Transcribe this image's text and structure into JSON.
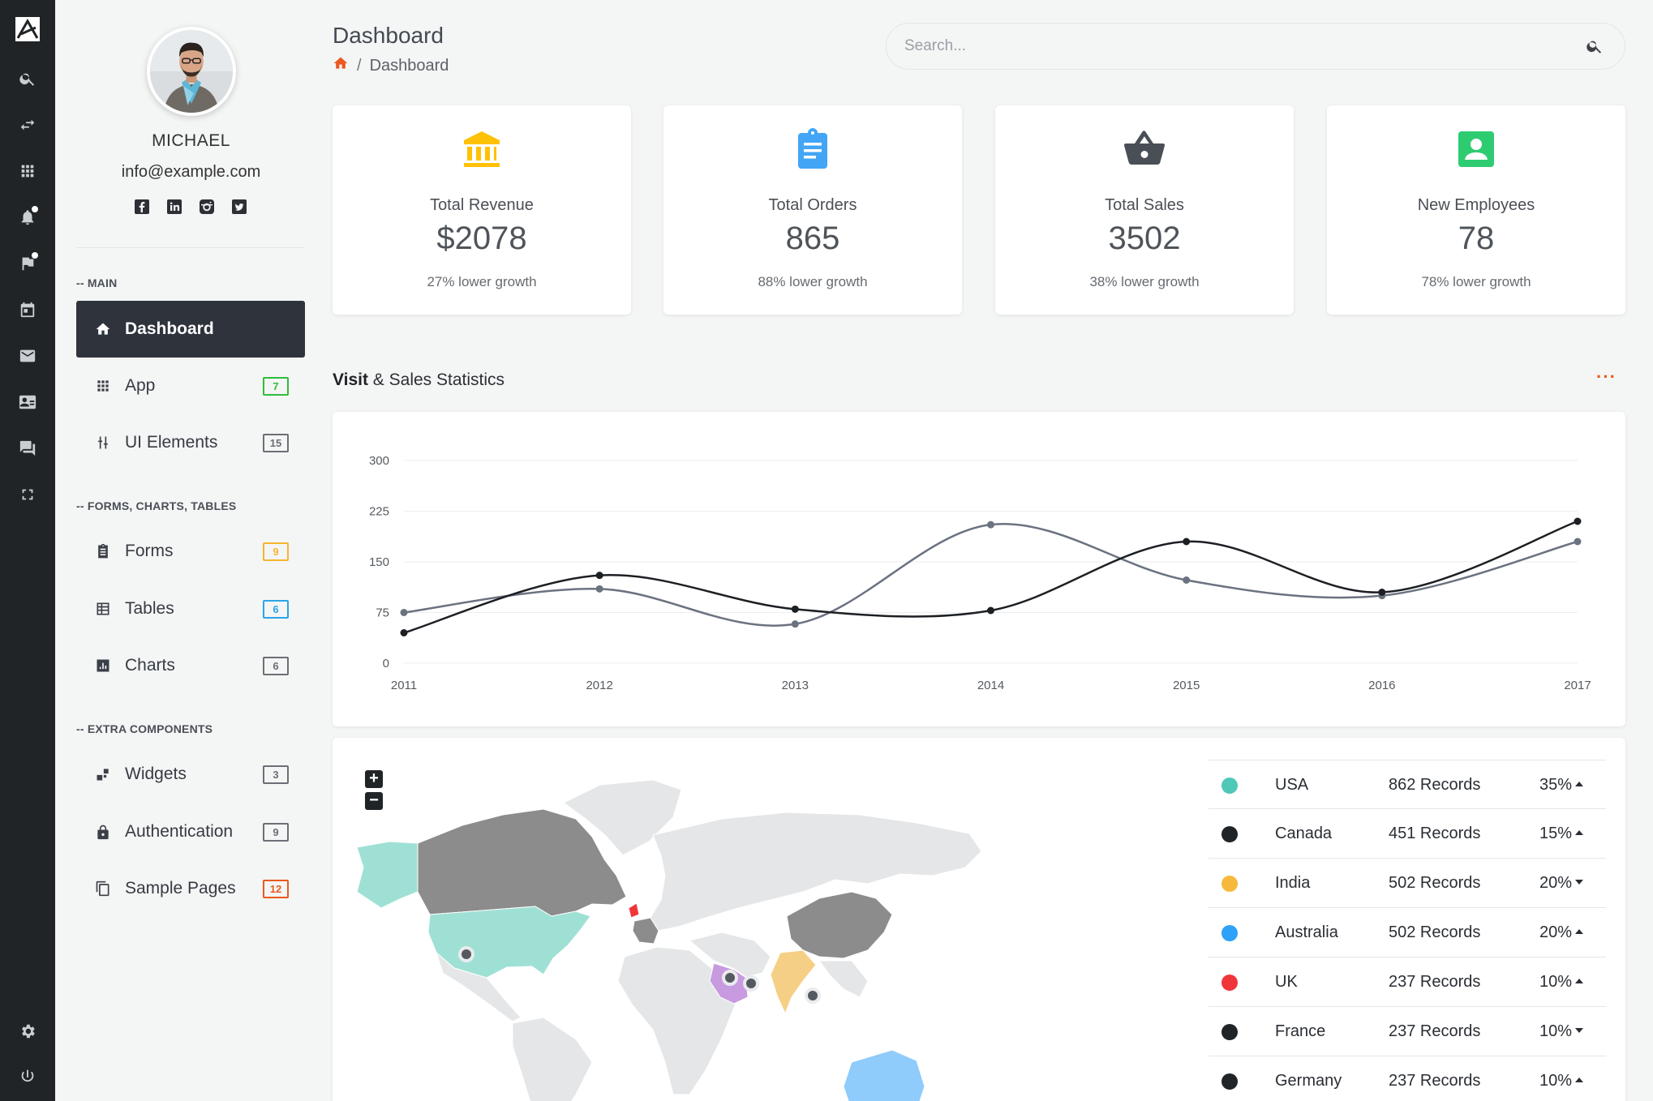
{
  "user": {
    "name": "MICHAEL",
    "email": "info@example.com",
    "socials": [
      "facebook-icon",
      "linkedin-icon",
      "instagram-icon",
      "twitter-icon"
    ]
  },
  "rail_icons": [
    "logo-icon",
    "search-icon",
    "swap-icon",
    "apps-icon",
    "bell-icon",
    "flag-icon",
    "calendar-icon",
    "mail-icon",
    "contact-card-icon",
    "chat-icon",
    "fullscreen-icon",
    "settings-icon",
    "power-icon"
  ],
  "sidebar": {
    "sections": [
      {
        "label": "-- MAIN"
      },
      {
        "label": "-- FORMS, CHARTS, TABLES"
      },
      {
        "label": "-- EXTRA COMPONENTS"
      }
    ],
    "items": [
      {
        "label": "Dashboard",
        "icon": "home-icon",
        "active": true
      },
      {
        "label": "App",
        "icon": "apps-icon",
        "badge": "7",
        "badge_color": "#2fbd3b"
      },
      {
        "label": "UI Elements",
        "icon": "sliders-icon",
        "badge": "15",
        "badge_color": "#6b6f75"
      },
      {
        "label": "Forms",
        "icon": "clipboard-icon",
        "badge": "9",
        "badge_color": "#f5b52f"
      },
      {
        "label": "Tables",
        "icon": "table-icon",
        "badge": "6",
        "badge_color": "#2ba5e8"
      },
      {
        "label": "Charts",
        "icon": "bar-chart-icon",
        "badge": "6",
        "badge_color": "#6b6f75"
      },
      {
        "label": "Widgets",
        "icon": "widgets-icon",
        "badge": "3",
        "badge_color": "#6b6f75"
      },
      {
        "label": "Authentication",
        "icon": "lock-icon",
        "badge": "9",
        "badge_color": "#6b6f75"
      },
      {
        "label": "Sample Pages",
        "icon": "copy-icon",
        "badge": "12",
        "badge_color": "#ea5a1e"
      }
    ]
  },
  "header": {
    "title": "Dashboard",
    "breadcrumb": {
      "separator": "/",
      "current": "Dashboard"
    },
    "search_placeholder": "Search..."
  },
  "stats": [
    {
      "label": "Total Revenue",
      "value": "$2078",
      "sub": "27% lower growth",
      "icon": "bank-icon",
      "color": "#ffc107"
    },
    {
      "label": "Total Orders",
      "value": "865",
      "sub": "88% lower growth",
      "icon": "clipboard-list-icon",
      "color": "#42a5f5"
    },
    {
      "label": "Total Sales",
      "value": "3502",
      "sub": "38% lower growth",
      "icon": "basket-icon",
      "color": "#4a4f56"
    },
    {
      "label": "New Employees",
      "value": "78",
      "sub": "78% lower growth",
      "icon": "account-box-icon",
      "color": "#2ecc71"
    }
  ],
  "statistics": {
    "title_bold": "Visit",
    "title_rest": " & Sales Statistics",
    "more": "···"
  },
  "chart_data": {
    "type": "line",
    "x": [
      "2011",
      "2012",
      "2013",
      "2014",
      "2015",
      "2016",
      "2017"
    ],
    "yticks": [
      "0",
      "75",
      "150",
      "225",
      "300"
    ],
    "ylim": [
      0,
      300
    ],
    "grid": true,
    "series": [
      {
        "values": [
          45,
          130,
          80,
          78,
          180,
          105,
          210
        ],
        "color": "#1c1f23"
      },
      {
        "values": [
          75,
          110,
          58,
          205,
          123,
          100,
          180
        ],
        "color": "#6b7280"
      }
    ]
  },
  "map": {
    "zoom_in": "+",
    "zoom_out": "−",
    "legend": [
      {
        "country": "USA",
        "records": "862 Records",
        "percent": "35%",
        "trend": "up",
        "color": "#4fc8b8"
      },
      {
        "country": "Canada",
        "records": "451 Records",
        "percent": "15%",
        "trend": "up",
        "color": "#202427"
      },
      {
        "country": "India",
        "records": "502 Records",
        "percent": "20%",
        "trend": "down",
        "color": "#f6b93b"
      },
      {
        "country": "Australia",
        "records": "502 Records",
        "percent": "20%",
        "trend": "up",
        "color": "#2ea1f8"
      },
      {
        "country": "UK",
        "records": "237 Records",
        "percent": "10%",
        "trend": "up",
        "color": "#f0353a"
      },
      {
        "country": "France",
        "records": "237 Records",
        "percent": "10%",
        "trend": "down",
        "color": "#202427"
      },
      {
        "country": "Germany",
        "records": "237 Records",
        "percent": "10%",
        "trend": "up",
        "color": "#202427"
      }
    ]
  }
}
